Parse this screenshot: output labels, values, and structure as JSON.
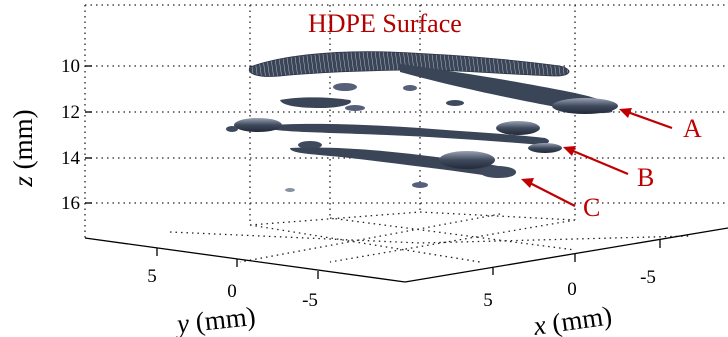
{
  "chart_data": {
    "type": "scatter",
    "title": "HDPE Surface",
    "xlabel_var": "x",
    "xlabel_unit": " (mm)",
    "ylabel_var": "y",
    "ylabel_unit": " (mm)",
    "zlabel_var": "z",
    "zlabel_unit": " (mm)",
    "x_ticks": [
      "5",
      "0",
      "-5"
    ],
    "y_ticks": [
      "5",
      "0",
      "-5"
    ],
    "z_ticks": [
      "10",
      "12",
      "14",
      "16"
    ],
    "z_direction": "reversed",
    "grid": true,
    "annotations": [
      {
        "label": "A"
      },
      {
        "label": "B"
      },
      {
        "label": "C"
      }
    ],
    "colors": {
      "surface": "#3f4a5e",
      "surface_highlight": "#b9c0cc",
      "annotation": "#c00000",
      "title": "#b00000"
    }
  }
}
